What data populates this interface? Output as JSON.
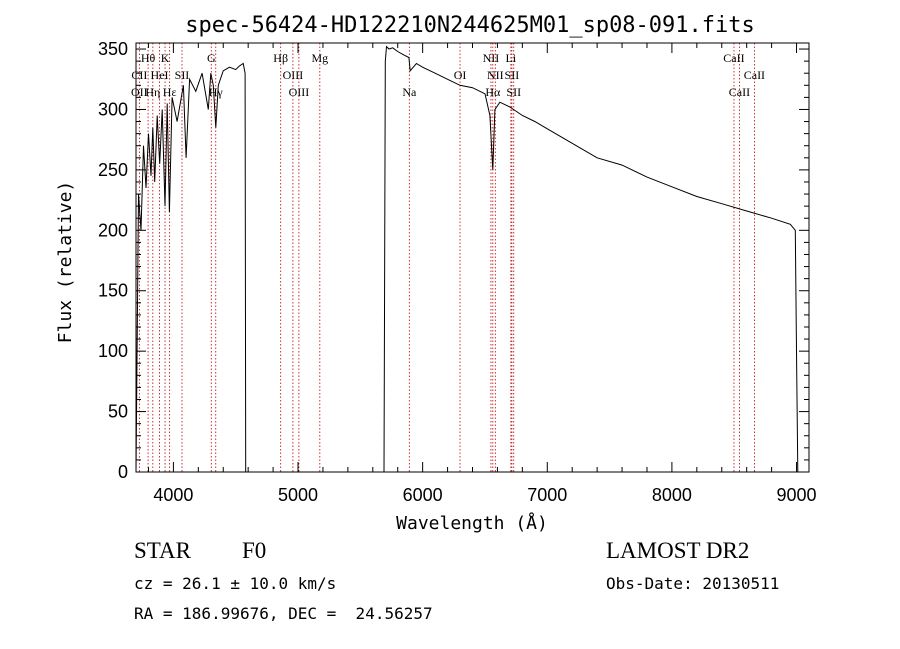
{
  "chart_data": {
    "type": "line",
    "title": "spec-56424-HD122210N244625M01_sp08-091.fits",
    "xlabel": "Wavelength (Å)",
    "ylabel": "Flux (relative)",
    "xlim": [
      3700,
      9100
    ],
    "ylim": [
      0,
      355
    ],
    "xticks": [
      4000,
      5000,
      6000,
      7000,
      8000,
      9000
    ],
    "yticks": [
      0,
      50,
      100,
      150,
      200,
      250,
      300,
      350
    ],
    "grid": false,
    "series": [
      {
        "x": [
          3700,
          3720,
          3740,
          3760,
          3780,
          3800,
          3820,
          3835,
          3850,
          3870,
          3890,
          3910,
          3933,
          3950,
          3968,
          3990,
          4030,
          4080,
          4102,
          4130,
          4180,
          4230,
          4280,
          4300,
          4320,
          4340,
          4360,
          4400,
          4450,
          4500,
          4530,
          4560,
          4575,
          4580,
          4585,
          4600,
          5690,
          5700,
          5710,
          5730,
          5760,
          5800,
          5850,
          5890,
          5900,
          5950,
          6000,
          6100,
          6200,
          6300,
          6400,
          6500,
          6540,
          6563,
          6580,
          6620,
          6700,
          6800,
          6900,
          7000,
          7200,
          7400,
          7600,
          7800,
          8000,
          8200,
          8400,
          8600,
          8800,
          8950,
          8990,
          9000,
          9010
        ],
        "y": [
          0,
          230,
          200,
          270,
          235,
          280,
          245,
          285,
          240,
          295,
          255,
          300,
          220,
          305,
          215,
          310,
          290,
          320,
          260,
          325,
          315,
          330,
          300,
          330,
          320,
          285,
          320,
          332,
          335,
          333,
          336,
          338,
          330,
          0,
          0,
          0,
          0,
          340,
          352,
          350,
          351,
          348,
          345,
          343,
          332,
          338,
          335,
          330,
          325,
          320,
          318,
          313,
          295,
          250,
          300,
          306,
          302,
          295,
          290,
          284,
          272,
          260,
          254,
          244,
          236,
          228,
          222,
          216,
          210,
          205,
          200,
          100,
          0
        ]
      }
    ],
    "line_ids": [
      {
        "label": "Hθ",
        "x": 3797,
        "row": 1
      },
      {
        "label": "K",
        "x": 3933,
        "row": 1
      },
      {
        "label": "G",
        "x": 4304,
        "row": 1
      },
      {
        "label": "Hβ",
        "x": 4861,
        "row": 1
      },
      {
        "label": "Mg",
        "x": 5175,
        "row": 1
      },
      {
        "label": "NII",
        "x": 6548,
        "row": 1
      },
      {
        "label": "Li",
        "x": 6708,
        "row": 1
      },
      {
        "label": "CaII",
        "x": 8498,
        "row": 1
      },
      {
        "label": "CII",
        "x": 3727,
        "row": 2
      },
      {
        "label": "HeI",
        "x": 3889,
        "row": 2
      },
      {
        "label": "SII",
        "x": 4069,
        "row": 2
      },
      {
        "label": "OIII",
        "x": 4959,
        "row": 2
      },
      {
        "label": "OI",
        "x": 6300,
        "row": 2
      },
      {
        "label": "NII",
        "x": 6583,
        "row": 2
      },
      {
        "label": "SII",
        "x": 6716,
        "row": 2
      },
      {
        "label": "CaII",
        "x": 8662,
        "row": 2
      },
      {
        "label": "OII",
        "x": 3727,
        "row": 3
      },
      {
        "label": "Hη",
        "x": 3835,
        "row": 3
      },
      {
        "label": "Hε",
        "x": 3970,
        "row": 3
      },
      {
        "label": "Hγ",
        "x": 4340,
        "row": 3
      },
      {
        "label": "OIII",
        "x": 5007,
        "row": 3
      },
      {
        "label": "Na",
        "x": 5893,
        "row": 3
      },
      {
        "label": "Hα",
        "x": 6563,
        "row": 3
      },
      {
        "label": "SII",
        "x": 6731,
        "row": 3
      },
      {
        "label": "CaII",
        "x": 8542,
        "row": 3
      }
    ]
  },
  "info": {
    "class": "STAR",
    "subclass": "F0",
    "survey": "LAMOST DR2",
    "cz": "cz = 26.1 ± 10.0 km/s",
    "obs_date": "Obs-Date: 20130511",
    "radec": "RA = 186.99676, DEC =  24.56257"
  }
}
